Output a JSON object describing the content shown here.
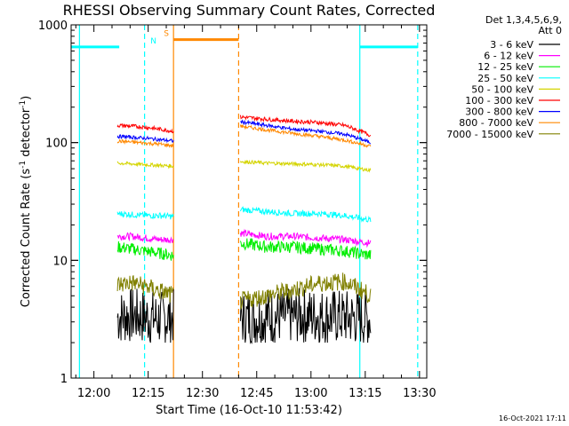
{
  "chart_data": {
    "type": "line",
    "title": "RHESSI Observing Summary Count Rates, Corrected",
    "ylabel": "Corrected Count Rate (s⁻¹ detector⁻¹)",
    "ylabel_parts": {
      "main": "Corrected Count Rate (s",
      "exp1": "-1",
      "mid": " detector",
      "exp2": "-1",
      "end": ")"
    },
    "xlabel": "Start Time (16-Oct-10 11:53:42)",
    "y_scale": "log",
    "ylim": [
      1,
      1000
    ],
    "xlim": [
      "11:53:42",
      "13:32:00"
    ],
    "x_ticks": [
      "12:00",
      "12:15",
      "12:30",
      "12:45",
      "13:00",
      "13:15",
      "13:30"
    ],
    "y_ticks": [
      "1",
      "10",
      "100",
      "1000"
    ],
    "legend_title": [
      "Det 1,3,4,5,6,9,",
      "Att 0"
    ],
    "legend_position": "right",
    "timestamp": "16-Oct-2021 17:11",
    "series": [
      {
        "name": "3 - 6 keV",
        "color": "#000000",
        "segments": [
          {
            "start": "12:06:30",
            "end": "12:22:00",
            "values": [
              3.3,
              3.4,
              3.3,
              3.2,
              3.3
            ]
          },
          {
            "start": "12:40:30",
            "end": "13:16:30",
            "values": [
              3.2,
              3.3,
              3.4,
              3.3,
              3.2
            ]
          }
        ]
      },
      {
        "name": "6 - 12 keV",
        "color": "#ff00ff",
        "segments": [
          {
            "start": "12:06:30",
            "end": "12:22:00",
            "values": [
              16,
              16,
              15.5,
              15,
              15
            ]
          },
          {
            "start": "12:40:30",
            "end": "13:16:30",
            "values": [
              17,
              16,
              16,
              15.5,
              15,
              14
            ]
          }
        ]
      },
      {
        "name": "12 - 25 keV",
        "color": "#00ee00",
        "segments": [
          {
            "start": "12:06:30",
            "end": "12:22:00",
            "values": [
              13,
              12.5,
              12,
              11.5,
              11
            ]
          },
          {
            "start": "12:40:30",
            "end": "13:16:30",
            "values": [
              14,
              13,
              13,
              12.5,
              12,
              11
            ]
          }
        ]
      },
      {
        "name": "25 - 50 keV",
        "color": "#00ffff",
        "segments": [
          {
            "start": "12:06:30",
            "end": "12:22:00",
            "values": [
              25,
              24.5,
              24,
              24,
              23.5
            ]
          },
          {
            "start": "12:40:30",
            "end": "13:16:30",
            "values": [
              27,
              26,
              25,
              25,
              24,
              22
            ]
          }
        ]
      },
      {
        "name": "50 - 100 keV",
        "color": "#d4d400",
        "segments": [
          {
            "start": "12:06:30",
            "end": "12:22:00",
            "values": [
              67,
              66,
              65,
              64,
              63
            ]
          },
          {
            "start": "12:40:30",
            "end": "13:16:30",
            "values": [
              69,
              67,
              66,
              65,
              63,
              58
            ]
          }
        ]
      },
      {
        "name": "100 - 300 keV",
        "color": "#ff0000",
        "segments": [
          {
            "start": "12:06:30",
            "end": "12:22:00",
            "values": [
              140,
              138,
              135,
              130,
              125
            ]
          },
          {
            "start": "12:40:30",
            "end": "13:16:30",
            "values": [
              165,
              158,
              152,
              148,
              140,
              115
            ]
          }
        ]
      },
      {
        "name": "300 - 800 keV",
        "color": "#0000ff",
        "segments": [
          {
            "start": "12:06:30",
            "end": "12:22:00",
            "values": [
              113,
              111,
              109,
              106,
              103
            ]
          },
          {
            "start": "12:40:30",
            "end": "13:16:30",
            "values": [
              150,
              140,
              130,
              125,
              118,
              100
            ]
          }
        ]
      },
      {
        "name": "800 - 7000 keV",
        "color": "#ff8800",
        "segments": [
          {
            "start": "12:06:30",
            "end": "12:22:00",
            "values": [
              103,
              101,
              99,
              97,
              94
            ]
          },
          {
            "start": "12:40:30",
            "end": "13:16:30",
            "values": [
              138,
              128,
              120,
              113,
              105,
              93
            ]
          }
        ]
      },
      {
        "name": "7000 - 15000 keV",
        "color": "#808000",
        "segments": [
          {
            "start": "12:06:30",
            "end": "12:22:00",
            "values": [
              6.2,
              6.5,
              6,
              5.5,
              5
            ]
          },
          {
            "start": "12:40:30",
            "end": "13:16:30",
            "values": [
              4.5,
              5,
              5.6,
              6.4,
              6.6,
              5
            ]
          }
        ]
      }
    ],
    "annotations": {
      "intervals": [
        {
          "label": "",
          "color": "#00ffff",
          "start": "11:53:42",
          "end": "12:07:00",
          "level": 650
        },
        {
          "label": "N",
          "color": "#00ffff",
          "start": "12:14:00",
          "end": "12:14:00",
          "level": 650
        },
        {
          "label": "S",
          "color": "#ff8800",
          "start": "12:22:00",
          "end": "12:40:00",
          "level": 750
        },
        {
          "label": "",
          "color": "#00ffff",
          "start": "13:13:30",
          "end": "13:29:30",
          "level": 650
        }
      ],
      "solid_lines": [
        {
          "time": "11:56:00",
          "color": "#00ffff"
        },
        {
          "time": "12:22:00",
          "color": "#ff8800"
        },
        {
          "time": "13:13:30",
          "color": "#00ffff"
        }
      ],
      "dashed_lines": [
        {
          "time": "12:14:00",
          "color": "#00ffff"
        },
        {
          "time": "12:40:00",
          "color": "#ff8800"
        },
        {
          "time": "13:29:30",
          "color": "#00ffff"
        }
      ]
    }
  }
}
